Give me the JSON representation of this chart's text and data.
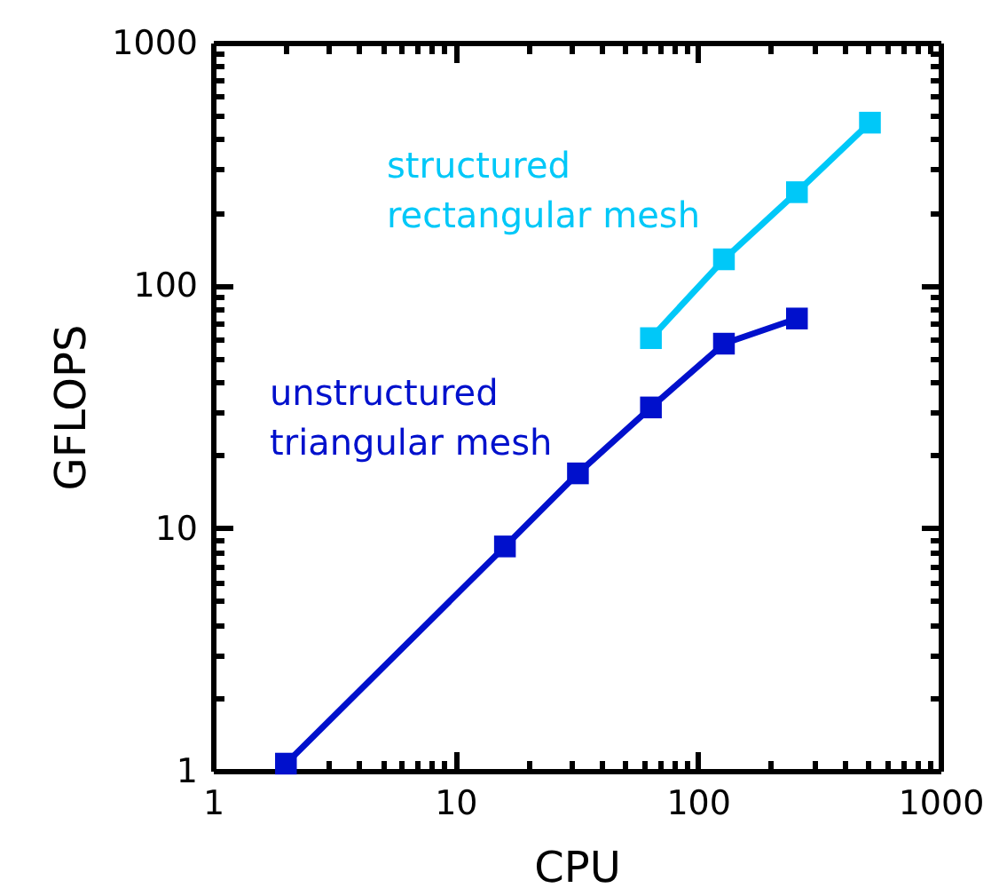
{
  "chart_data": {
    "type": "line",
    "xlabel": "CPU",
    "ylabel": "GFLOPS",
    "log": "xy",
    "marker": "square",
    "line_style": "solid",
    "grid": false,
    "legend": false,
    "xlim": [
      1,
      1000
    ],
    "ylim": [
      1,
      1000
    ],
    "xticks": [
      1,
      {
        "value": 2,
        "label": null
      },
      {
        "value": 3,
        "label": null
      },
      {
        "value": 4,
        "label": null
      },
      {
        "value": 5,
        "label": null
      },
      {
        "value": 6,
        "label": null
      },
      {
        "value": 7,
        "label": null
      },
      {
        "value": 8,
        "label": null
      },
      {
        "value": 9,
        "label": null
      },
      10,
      {
        "value": 20,
        "label": null
      },
      {
        "value": 30,
        "label": null
      },
      {
        "value": 40,
        "label": null
      },
      {
        "value": 50,
        "label": null
      },
      {
        "value": 60,
        "label": null
      },
      {
        "value": 70,
        "label": null
      },
      {
        "value": 80,
        "label": null
      },
      {
        "value": 90,
        "label": null
      },
      100,
      {
        "value": 200,
        "label": null
      },
      {
        "value": 300,
        "label": null
      },
      {
        "value": 400,
        "label": null
      },
      {
        "value": 500,
        "label": null
      },
      {
        "value": 600,
        "label": null
      },
      {
        "value": 700,
        "label": null
      },
      {
        "value": 800,
        "label": null
      },
      {
        "value": 900,
        "label": null
      },
      1000
    ],
    "yticks": [
      1,
      {
        "value": 2,
        "label": null
      },
      {
        "value": 3,
        "label": null
      },
      {
        "value": 4,
        "label": null
      },
      {
        "value": 5,
        "label": null
      },
      {
        "value": 6,
        "label": null
      },
      {
        "value": 7,
        "label": null
      },
      {
        "value": 8,
        "label": null
      },
      {
        "value": 9,
        "label": null
      },
      10,
      {
        "value": 20,
        "label": null
      },
      {
        "value": 30,
        "label": null
      },
      {
        "value": 40,
        "label": null
      },
      {
        "value": 50,
        "label": null
      },
      {
        "value": 60,
        "label": null
      },
      {
        "value": 70,
        "label": null
      },
      {
        "value": 80,
        "label": null
      },
      {
        "value": 90,
        "label": null
      },
      100,
      {
        "value": 200,
        "label": null
      },
      {
        "value": 300,
        "label": null
      },
      {
        "value": 400,
        "label": null
      },
      {
        "value": 500,
        "label": null
      },
      {
        "value": 600,
        "label": null
      },
      {
        "value": 700,
        "label": null
      },
      {
        "value": 800,
        "label": null
      },
      {
        "value": 900,
        "label": null
      },
      1000
    ],
    "series": [
      {
        "name": "unstructured triangular mesh",
        "color": "#0010cc",
        "x": [
          2,
          16,
          32,
          64,
          128,
          256
        ],
        "values": [
          1.07,
          8.4,
          16.8,
          31.4,
          57.5,
          73
        ]
      },
      {
        "name": "structured rectangular mesh",
        "color": "#00c8f8",
        "x": [
          64,
          128,
          256,
          512
        ],
        "values": [
          60.6,
          128,
          242,
          468
        ]
      }
    ]
  }
}
